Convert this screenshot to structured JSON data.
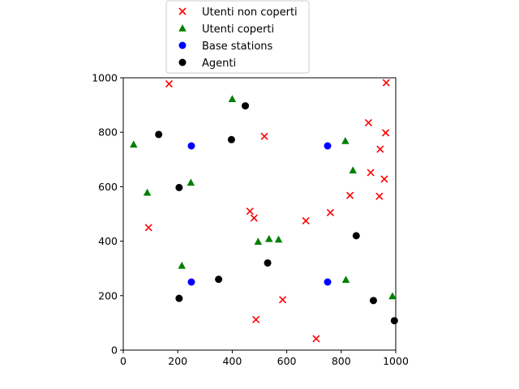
{
  "chart_data": {
    "type": "scatter",
    "title": "",
    "xlabel": "",
    "ylabel": "",
    "xlim": [
      0,
      1000
    ],
    "ylim": [
      0,
      1000
    ],
    "xticks": [
      0,
      200,
      400,
      600,
      800,
      1000
    ],
    "yticks": [
      0,
      200,
      400,
      600,
      800,
      1000
    ],
    "grid": false,
    "legend_position": "top, outside plot area",
    "series": [
      {
        "name": "Utenti non coperti",
        "marker": "x",
        "color": "#ff0000",
        "points": [
          [
            168,
            978
          ],
          [
            965,
            982
          ],
          [
            900,
            835
          ],
          [
            518,
            785
          ],
          [
            963,
            798
          ],
          [
            943,
            738
          ],
          [
            908,
            652
          ],
          [
            958,
            628
          ],
          [
            832,
            568
          ],
          [
            940,
            565
          ],
          [
            93,
            450
          ],
          [
            465,
            510
          ],
          [
            480,
            485
          ],
          [
            670,
            475
          ],
          [
            760,
            505
          ],
          [
            585,
            185
          ],
          [
            487,
            112
          ],
          [
            708,
            42
          ]
        ]
      },
      {
        "name": "Utenti coperti",
        "marker": "triangle",
        "color": "#008000",
        "points": [
          [
            400,
            922
          ],
          [
            38,
            755
          ],
          [
            815,
            768
          ],
          [
            843,
            660
          ],
          [
            248,
            615
          ],
          [
            88,
            578
          ],
          [
            495,
            398
          ],
          [
            535,
            408
          ],
          [
            570,
            406
          ],
          [
            215,
            310
          ],
          [
            817,
            258
          ],
          [
            988,
            198
          ]
        ]
      },
      {
        "name": "Base stations",
        "marker": "circle",
        "color": "#0000ff",
        "points": [
          [
            250,
            750
          ],
          [
            750,
            750
          ],
          [
            250,
            250
          ],
          [
            750,
            250
          ]
        ]
      },
      {
        "name": "Agenti",
        "marker": "circle",
        "color": "#000000",
        "points": [
          [
            448,
            897
          ],
          [
            130,
            792
          ],
          [
            397,
            773
          ],
          [
            205,
            597
          ],
          [
            855,
            420
          ],
          [
            530,
            320
          ],
          [
            350,
            260
          ],
          [
            205,
            190
          ],
          [
            918,
            182
          ],
          [
            995,
            108
          ]
        ]
      }
    ]
  }
}
